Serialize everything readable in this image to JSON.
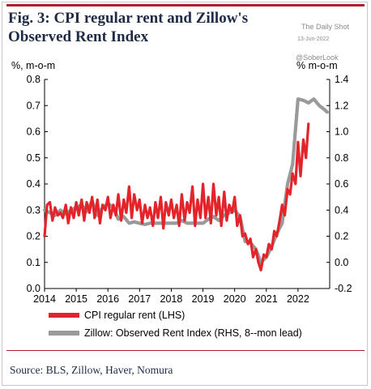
{
  "figure": {
    "title": "Fig. 3:  CPI regular rent and Zillow's Observed Rent Index",
    "watermark_site": "The Daily Shot",
    "watermark_date": "13-Jun-2022",
    "watermark_handle": "@SoberLook",
    "source": "Source: BLS, Zillow, Haver, Nomura",
    "colors": {
      "accent": "#b01e2a",
      "cpi": "#e3242b",
      "zillow": "#9a9a9a"
    }
  },
  "chart_data": {
    "type": "line",
    "title": "CPI regular rent and Zillow's Observed Rent Index",
    "left_axis_label": "%, m-o-m",
    "right_axis_label": "% m-o-m",
    "ylim_left": [
      0.0,
      0.8
    ],
    "ylim_right": [
      -0.2,
      1.4
    ],
    "xlim": [
      2014.0,
      2023.0
    ],
    "x_ticks": [
      "2014",
      "2015",
      "2016",
      "2017",
      "2018",
      "2019",
      "2020",
      "2021",
      "2022"
    ],
    "left_ticks": [
      "0.0",
      "0.1",
      "0.2",
      "0.3",
      "0.4",
      "0.5",
      "0.6",
      "0.7",
      "0.8"
    ],
    "right_ticks": [
      "-0.2",
      "0.0",
      "0.2",
      "0.4",
      "0.6",
      "0.8",
      "1.0",
      "1.2",
      "1.4"
    ],
    "grid": false,
    "legend_position": "bottom-left",
    "series": [
      {
        "name": "CPI regular rent (LHS)",
        "axis": "left",
        "color": "#e3242b",
        "x": [
          2014.0,
          2014.08,
          2014.17,
          2014.25,
          2014.33,
          2014.42,
          2014.5,
          2014.58,
          2014.67,
          2014.75,
          2014.83,
          2014.92,
          2015.0,
          2015.08,
          2015.17,
          2015.25,
          2015.33,
          2015.42,
          2015.5,
          2015.58,
          2015.67,
          2015.75,
          2015.83,
          2015.92,
          2016.0,
          2016.08,
          2016.17,
          2016.25,
          2016.33,
          2016.42,
          2016.5,
          2016.58,
          2016.67,
          2016.75,
          2016.83,
          2016.92,
          2017.0,
          2017.08,
          2017.17,
          2017.25,
          2017.33,
          2017.42,
          2017.5,
          2017.58,
          2017.67,
          2017.75,
          2017.83,
          2017.92,
          2018.0,
          2018.08,
          2018.17,
          2018.25,
          2018.33,
          2018.42,
          2018.5,
          2018.58,
          2018.67,
          2018.75,
          2018.83,
          2018.92,
          2019.0,
          2019.08,
          2019.17,
          2019.25,
          2019.33,
          2019.42,
          2019.5,
          2019.58,
          2019.67,
          2019.75,
          2019.83,
          2019.92,
          2020.0,
          2020.08,
          2020.17,
          2020.25,
          2020.33,
          2020.42,
          2020.5,
          2020.58,
          2020.67,
          2020.75,
          2020.83,
          2020.92,
          2021.0,
          2021.08,
          2021.17,
          2021.25,
          2021.33,
          2021.42,
          2021.5,
          2021.58,
          2021.67,
          2021.75,
          2021.83,
          2021.92,
          2022.0,
          2022.08,
          2022.17,
          2022.25,
          2022.33
        ],
        "values": [
          0.2,
          0.32,
          0.33,
          0.26,
          0.31,
          0.28,
          0.29,
          0.27,
          0.32,
          0.25,
          0.31,
          0.27,
          0.33,
          0.28,
          0.34,
          0.26,
          0.33,
          0.29,
          0.35,
          0.27,
          0.34,
          0.25,
          0.32,
          0.3,
          0.35,
          0.27,
          0.32,
          0.28,
          0.36,
          0.26,
          0.34,
          0.29,
          0.39,
          0.27,
          0.36,
          0.3,
          0.34,
          0.25,
          0.32,
          0.27,
          0.31,
          0.24,
          0.33,
          0.27,
          0.35,
          0.23,
          0.33,
          0.28,
          0.34,
          0.27,
          0.32,
          0.24,
          0.36,
          0.26,
          0.33,
          0.29,
          0.39,
          0.24,
          0.34,
          0.27,
          0.4,
          0.27,
          0.35,
          0.25,
          0.4,
          0.28,
          0.35,
          0.24,
          0.37,
          0.26,
          0.32,
          0.29,
          0.35,
          0.24,
          0.28,
          0.2,
          0.21,
          0.17,
          0.19,
          0.12,
          0.15,
          0.1,
          0.07,
          0.13,
          0.12,
          0.17,
          0.15,
          0.22,
          0.2,
          0.26,
          0.32,
          0.28,
          0.38,
          0.36,
          0.44,
          0.4,
          0.56,
          0.43,
          0.57,
          0.5,
          0.63
        ]
      },
      {
        "name": "Zillow: Observed Rent Index (RHS, 8--mon lead)",
        "axis": "right",
        "color": "#9a9a9a",
        "x": [
          2014.0,
          2014.17,
          2014.33,
          2014.5,
          2014.67,
          2014.83,
          2015.0,
          2015.17,
          2015.33,
          2015.5,
          2015.67,
          2015.83,
          2016.0,
          2016.17,
          2016.33,
          2016.5,
          2016.67,
          2016.83,
          2017.0,
          2017.17,
          2017.33,
          2017.5,
          2017.67,
          2017.83,
          2018.0,
          2018.17,
          2018.33,
          2018.5,
          2018.67,
          2018.83,
          2019.0,
          2019.17,
          2019.33,
          2019.5,
          2019.67,
          2019.83,
          2020.0,
          2020.17,
          2020.33,
          2020.5,
          2020.67,
          2020.83,
          2021.0,
          2021.17,
          2021.33,
          2021.5,
          2021.67,
          2021.83,
          2022.0,
          2022.17,
          2022.33,
          2022.5,
          2022.67,
          2022.83,
          2022.92
        ],
        "values": [
          0.4,
          0.38,
          0.36,
          0.4,
          0.37,
          0.4,
          0.42,
          0.44,
          0.39,
          0.47,
          0.36,
          0.42,
          0.45,
          0.42,
          0.33,
          0.35,
          0.3,
          0.31,
          0.3,
          0.29,
          0.3,
          0.3,
          0.3,
          0.3,
          0.3,
          0.3,
          0.32,
          0.3,
          0.3,
          0.3,
          0.3,
          0.33,
          0.35,
          0.32,
          0.36,
          0.38,
          0.4,
          0.35,
          0.16,
          0.15,
          0.1,
          0.0,
          0.04,
          0.12,
          0.22,
          0.3,
          0.6,
          0.75,
          1.25,
          1.24,
          1.22,
          1.25,
          1.2,
          1.17,
          1.15
        ]
      }
    ]
  }
}
